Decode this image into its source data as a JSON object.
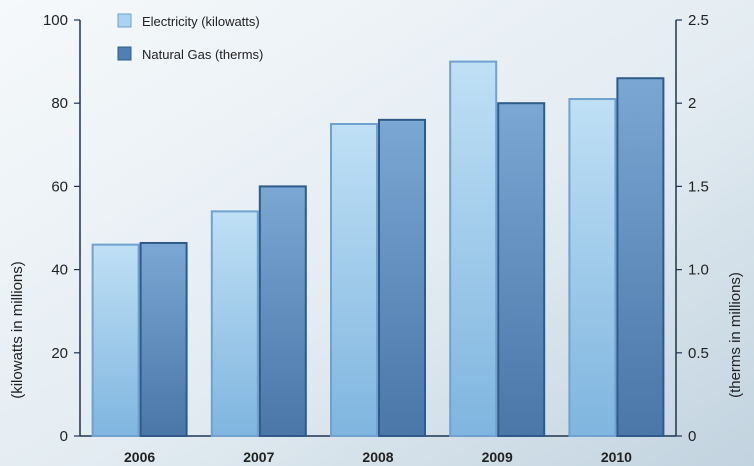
{
  "chart_data": {
    "type": "bar",
    "categories": [
      "2006",
      "2007",
      "2008",
      "2009",
      "2010"
    ],
    "series": [
      {
        "name": "Electricity (kilowatts)",
        "axis": "left",
        "values": [
          46,
          54,
          75,
          90,
          81
        ],
        "color": "#a9d3ef"
      },
      {
        "name": "Natural Gas (therms)",
        "axis": "right",
        "values": [
          1.16,
          1.5,
          1.9,
          2.0,
          2.15
        ],
        "color": "#5d8fc0"
      }
    ],
    "left_axis": {
      "label": "(kilowatts in millions)",
      "ylim": [
        0,
        100
      ],
      "ticks": [
        "0",
        "20",
        "40",
        "60",
        "80",
        "100"
      ]
    },
    "right_axis": {
      "label": "(therms in millions)",
      "ylim": [
        0,
        2.5
      ],
      "ticks": [
        "0",
        "0.5",
        "1.0",
        "1.5",
        "2",
        "2.5"
      ]
    },
    "legend": {
      "position": "top-left"
    },
    "grid": false,
    "colors": {
      "background_top": "#eef3f6",
      "background_bottom": "#c9d8e2",
      "axis": "#1e3550",
      "bar_outline": "#3a6ea5"
    }
  }
}
